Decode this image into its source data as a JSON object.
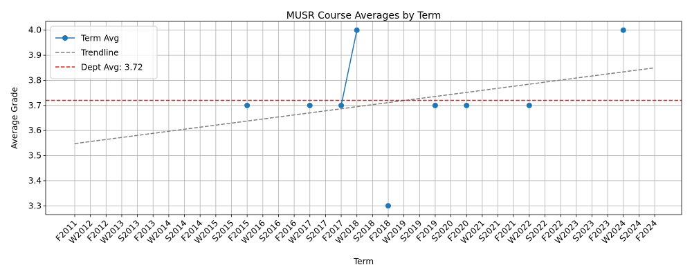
{
  "chart_data": {
    "type": "line",
    "title": "MUSR Course Averages by Term",
    "xlabel": "Term",
    "ylabel": "Average Grade",
    "categories": [
      "F2011",
      "W2012",
      "F2012",
      "W2013",
      "S2013",
      "F2013",
      "W2014",
      "S2014",
      "F2014",
      "W2015",
      "S2015",
      "F2015",
      "W2016",
      "S2016",
      "F2016",
      "W2017",
      "S2017",
      "F2017",
      "W2018",
      "S2018",
      "F2018",
      "W2019",
      "S2019",
      "F2019",
      "S2020",
      "F2020",
      "W2021",
      "S2021",
      "F2021",
      "W2022",
      "S2022",
      "F2022",
      "W2023",
      "S2023",
      "F2023",
      "W2024",
      "S2024",
      "F2024"
    ],
    "ylim": [
      3.265,
      4.035
    ],
    "yticks": [
      "3.3",
      "3.4",
      "3.5",
      "3.6",
      "3.7",
      "3.8",
      "3.9",
      "4.0"
    ],
    "grid": true,
    "legend_position": "upper left",
    "series": [
      {
        "name": "Term Avg",
        "color": "#1f77b4",
        "values": [
          null,
          null,
          null,
          null,
          null,
          null,
          null,
          null,
          null,
          null,
          null,
          3.7,
          null,
          null,
          null,
          3.7,
          null,
          3.7,
          4.0,
          null,
          3.3,
          null,
          null,
          3.7,
          null,
          3.7,
          null,
          null,
          null,
          3.7,
          null,
          null,
          null,
          null,
          null,
          4.0,
          null,
          null
        ]
      },
      {
        "name": "Trendline",
        "color": "#808080",
        "style": "dashed",
        "start": [
          "F2011",
          3.548
        ],
        "end": [
          "F2024",
          3.85
        ]
      },
      {
        "name": "Dept Avg: 3.72",
        "color": "#d62728",
        "style": "dashed",
        "value": 3.72
      }
    ]
  }
}
